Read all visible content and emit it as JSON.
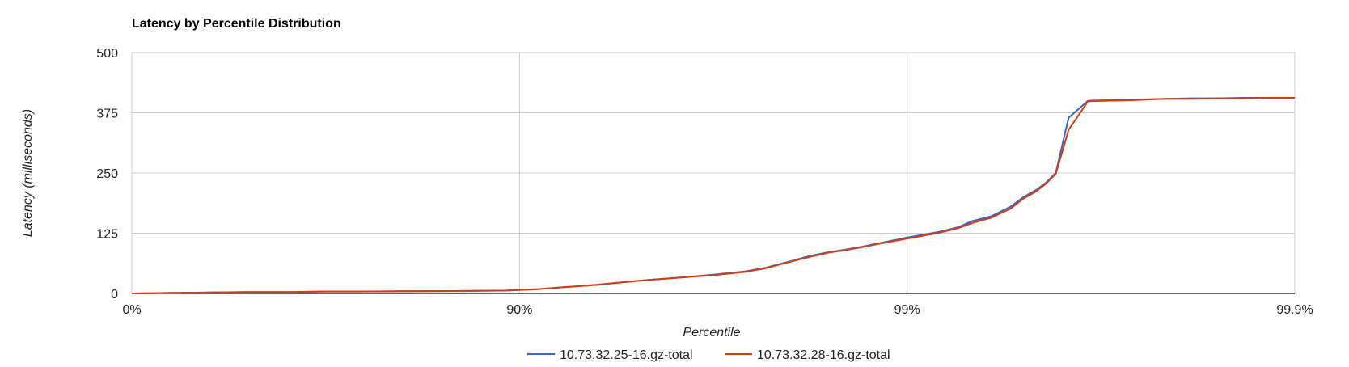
{
  "chart_data": {
    "type": "line",
    "title": "Latency by Percentile Distribution",
    "xlabel": "Percentile",
    "ylabel": "Latency (milliseconds)",
    "x_tick_labels": [
      "0%",
      "90%",
      "99%",
      "99.9%"
    ],
    "y_ticks": [
      0,
      125,
      250,
      375,
      500
    ],
    "ylim": [
      0,
      500
    ],
    "grid": true,
    "legend_position": "bottom",
    "series": [
      {
        "name": "10.73.32.25-16.gz-total",
        "color": "#3366cc",
        "x": [
          0,
          3,
          5,
          8,
          12,
          18,
          25,
          30,
          35,
          42,
          50,
          58,
          63,
          66,
          70,
          72,
          75,
          80,
          85,
          90,
          95,
          98,
          100,
          102,
          105,
          108,
          110,
          113,
          116,
          120,
          125,
          128,
          130,
          133,
          136,
          138,
          140,
          141.5,
          143,
          145,
          148,
          151,
          155,
          158,
          160,
          164,
          168,
          172,
          176,
          180
        ],
        "values": [
          0,
          0.5,
          1,
          1.5,
          2,
          3,
          3,
          4,
          4,
          4.5,
          5,
          6,
          9,
          12,
          16,
          18,
          22,
          28,
          33,
          39,
          46,
          53,
          60,
          67,
          78,
          86,
          90,
          97,
          105,
          116,
          128,
          138,
          150,
          160,
          180,
          200,
          215,
          230,
          250,
          365,
          400,
          401,
          402,
          403,
          404,
          405,
          405,
          406,
          406,
          406
        ]
      },
      {
        "name": "10.73.32.28-16.gz-total",
        "color": "#dc3912",
        "x": [
          0,
          3,
          5,
          8,
          12,
          18,
          25,
          30,
          35,
          42,
          50,
          58,
          63,
          66,
          70,
          72,
          75,
          80,
          85,
          90,
          95,
          98,
          100,
          102,
          105,
          108,
          110,
          113,
          116,
          120,
          125,
          128,
          130,
          133,
          136,
          138,
          140,
          141.5,
          143,
          145,
          148,
          151,
          155,
          158,
          160,
          164,
          168,
          172,
          176,
          180
        ],
        "values": [
          0,
          0.5,
          1,
          1.5,
          2,
          3,
          3,
          4,
          4,
          4.5,
          5,
          6,
          9,
          12,
          16,
          18,
          22,
          28,
          33,
          38,
          45,
          52,
          59,
          66,
          76,
          85,
          89,
          96,
          104,
          114,
          126,
          136,
          146,
          157,
          176,
          197,
          212,
          228,
          248,
          340,
          399,
          400,
          401,
          403,
          404,
          404,
          405,
          405,
          406,
          406
        ]
      }
    ]
  }
}
